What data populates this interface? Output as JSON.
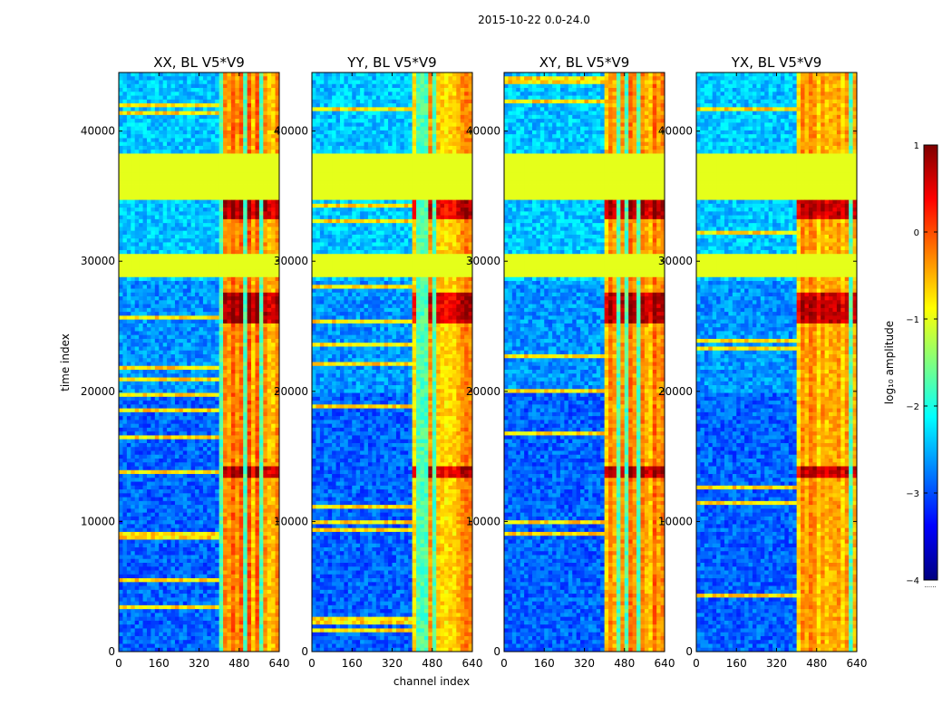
{
  "figure_title": "2015-10-22 0.0-24.0",
  "chart_data": {
    "type": "heatmap",
    "colormap": "jet",
    "shared": {
      "xlabel": "channel index",
      "ylabel": "time index",
      "xlim": [
        0,
        640
      ],
      "ylim": [
        0,
        44500
      ],
      "xticks": [
        0,
        160,
        320,
        480,
        640
      ],
      "yticks": [
        0,
        10000,
        20000,
        30000,
        40000
      ]
    },
    "panels": [
      {
        "title": "XX, BL V5*V9",
        "band_strength": 1.0
      },
      {
        "title": "YY, BL V5*V9",
        "band_strength": 0.8
      },
      {
        "title": "XY, BL V5*V9",
        "band_strength": 0.95
      },
      {
        "title": "YX, BL V5*V9",
        "band_strength": 0.85
      }
    ],
    "flagged_rows": [
      [
        30600,
        28700
      ],
      [
        38200,
        34800
      ]
    ],
    "rfi_channel_range": [
      408,
      640
    ],
    "high_amplitude_rows": [
      [
        14300,
        13300
      ],
      [
        27700,
        25600
      ],
      [
        34600,
        33200
      ],
      [
        26300,
        25300
      ]
    ],
    "colorbar": {
      "label": "log₁₀ amplitude",
      "ticks": [
        "1",
        "0",
        "−1",
        "−2",
        "−3",
        "−4"
      ],
      "range": [
        -4,
        1
      ],
      "extra": "......"
    }
  }
}
